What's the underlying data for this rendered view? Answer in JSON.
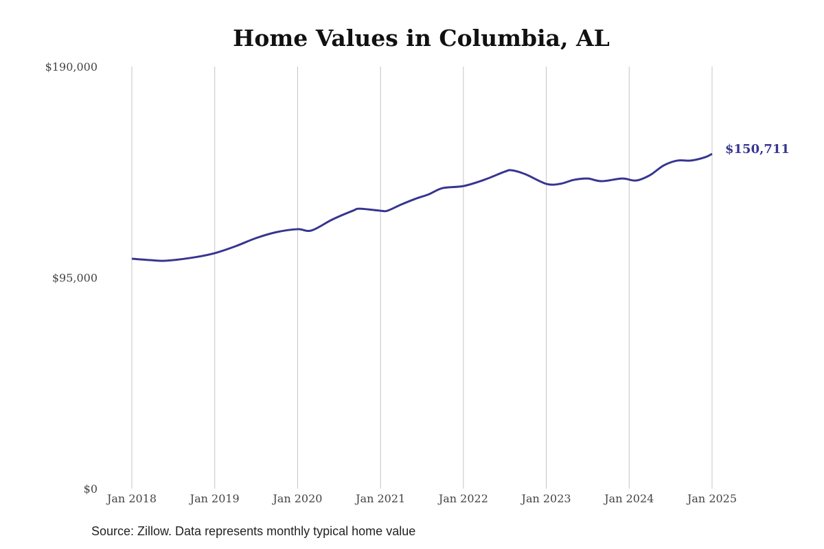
{
  "chart_data": {
    "type": "line",
    "title": "Home Values in Columbia, AL",
    "source": "Source: Zillow. Data represents monthly typical home value",
    "xlabel": "",
    "ylabel": "",
    "ylim": [
      0,
      190000
    ],
    "yticks": [
      {
        "value": 0,
        "label": "$0"
      },
      {
        "value": 95000,
        "label": "$95,000"
      },
      {
        "value": 190000,
        "label": "$190,000"
      }
    ],
    "xticks": [
      {
        "value": "2018-01",
        "label": "Jan 2018"
      },
      {
        "value": "2019-01",
        "label": "Jan 2019"
      },
      {
        "value": "2020-01",
        "label": "Jan 2020"
      },
      {
        "value": "2021-01",
        "label": "Jan 2021"
      },
      {
        "value": "2022-01",
        "label": "Jan 2022"
      },
      {
        "value": "2023-01",
        "label": "Jan 2023"
      },
      {
        "value": "2024-01",
        "label": "Jan 2024"
      },
      {
        "value": "2025-01",
        "label": "Jan 2025"
      }
    ],
    "grid": "vertical",
    "line_color": "#363590",
    "end_label": "$150,711",
    "series": [
      {
        "x": [
          "2018-01",
          "2018-04",
          "2018-06",
          "2018-10",
          "2019-01",
          "2019-04",
          "2019-07",
          "2019-10",
          "2020-01",
          "2020-03",
          "2020-06",
          "2020-09",
          "2020-10",
          "2021-01",
          "2021-02",
          "2021-04",
          "2021-06",
          "2021-08",
          "2021-10",
          "2022-01",
          "2022-04",
          "2022-07",
          "2022-08",
          "2022-10",
          "2023-01",
          "2023-03",
          "2023-05",
          "2023-07",
          "2023-09",
          "2023-12",
          "2024-02",
          "2024-04",
          "2024-06",
          "2024-08",
          "2024-10",
          "2024-12",
          "2025-01"
        ],
        "y": [
          103500,
          102800,
          102600,
          104100,
          106000,
          109100,
          112800,
          115500,
          116800,
          116200,
          121100,
          125100,
          126000,
          125100,
          125100,
          127900,
          130400,
          132500,
          135300,
          136200,
          139000,
          142700,
          143300,
          141500,
          137200,
          137200,
          139000,
          139600,
          138400,
          139600,
          138700,
          141100,
          145500,
          147700,
          147700,
          149200,
          150711
        ]
      }
    ]
  }
}
